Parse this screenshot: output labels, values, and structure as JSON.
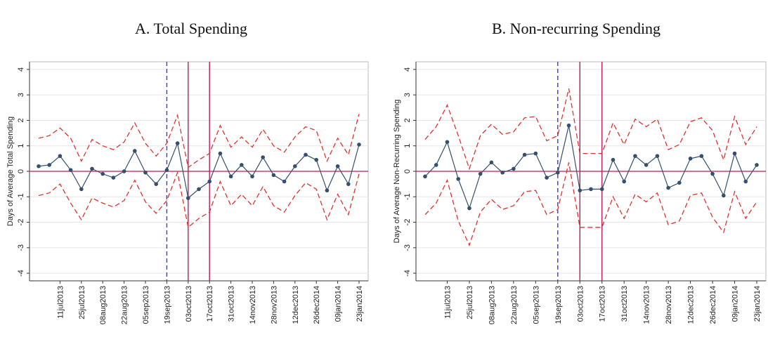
{
  "chart_data": [
    {
      "type": "line",
      "title": "A. Total Spending",
      "y_label": "Days of Average Total Spending",
      "categories": [
        null,
        null,
        "11jul2013",
        null,
        "25jul2013",
        null,
        "08aug2013",
        null,
        "22aug2013",
        null,
        "05sep2013",
        null,
        "19sep2013",
        null,
        "03oct2013",
        null,
        "17oct2013",
        null,
        "31oct2013",
        null,
        "14nov2013",
        null,
        "28nov2013",
        null,
        "12dec2013",
        null,
        "26dec2014",
        null,
        "09jan2014",
        null,
        "23jan2014"
      ],
      "series": [
        {
          "color": "#34506e",
          "markers": true,
          "dash": false,
          "values": [
            0.2,
            0.25,
            0.6,
            0.05,
            -0.7,
            0.1,
            -0.1,
            -0.25,
            0.0,
            0.8,
            -0.05,
            -0.5,
            0.05,
            1.1,
            -1.05,
            -0.7,
            -0.4,
            0.7,
            -0.2,
            0.25,
            -0.2,
            0.55,
            -0.15,
            -0.4,
            0.2,
            0.65,
            0.45,
            -0.75,
            0.2,
            -0.5,
            1.05
          ]
        },
        {
          "color": "#e0332e",
          "markers": false,
          "dash": true,
          "values": [
            1.3,
            1.4,
            1.7,
            1.3,
            0.4,
            1.25,
            1.0,
            0.85,
            1.15,
            1.9,
            1.1,
            0.6,
            1.1,
            2.2,
            0.15,
            0.45,
            0.7,
            1.8,
            0.95,
            1.35,
            0.95,
            1.65,
            1.0,
            0.75,
            1.35,
            1.75,
            1.6,
            0.4,
            1.3,
            0.65,
            2.25
          ]
        },
        {
          "color": "#e0332e",
          "markers": false,
          "dash": true,
          "values": [
            -0.95,
            -0.85,
            -0.5,
            -1.25,
            -1.9,
            -1.05,
            -1.25,
            -1.4,
            -1.15,
            -0.35,
            -1.2,
            -1.65,
            -1.15,
            -0.05,
            -2.2,
            -1.85,
            -1.6,
            -0.4,
            -1.35,
            -0.9,
            -1.35,
            -0.6,
            -1.35,
            -1.6,
            -0.95,
            -0.45,
            -0.7,
            -1.9,
            -0.9,
            -1.7,
            -0.1
          ]
        }
      ],
      "ylim": [
        -4.3,
        4.3
      ],
      "yticks": [
        -4,
        -3,
        -2,
        -1,
        0,
        1,
        2,
        3,
        4
      ],
      "grid": true,
      "hline": {
        "y": 0,
        "color": "#c2185b"
      },
      "vlines": [
        {
          "x": 12,
          "color": "#3b3bd9",
          "dash": true
        },
        {
          "x": 14,
          "color": "#c2185b",
          "dash": false
        },
        {
          "x": 16,
          "color": "#c2185b",
          "dash": false
        }
      ]
    },
    {
      "type": "line",
      "title": "B. Non-recurring Spending",
      "y_label": "Days of Average Non-Recurring Spending",
      "categories": [
        null,
        null,
        "11jul2013",
        null,
        "25jul2013",
        null,
        "08aug2013",
        null,
        "22aug2013",
        null,
        "05sep2013",
        null,
        "19sep2013",
        null,
        "03oct2013",
        null,
        "17oct2013",
        null,
        "31oct2013",
        null,
        "14nov2013",
        null,
        "28nov2013",
        null,
        "12dec2013",
        null,
        "26dec2014",
        null,
        "09jan2014",
        null,
        "23jan2014"
      ],
      "series": [
        {
          "color": "#34506e",
          "markers": true,
          "dash": false,
          "values": [
            -0.2,
            0.25,
            1.15,
            -0.3,
            -1.45,
            -0.1,
            0.35,
            -0.05,
            0.1,
            0.65,
            0.7,
            -0.25,
            -0.05,
            1.8,
            -0.75,
            -0.7,
            -0.7,
            0.45,
            -0.4,
            0.6,
            0.25,
            0.6,
            -0.65,
            -0.45,
            0.5,
            0.6,
            -0.1,
            -0.95,
            0.7,
            -0.4,
            0.25
          ]
        },
        {
          "color": "#e0332e",
          "markers": false,
          "dash": true,
          "values": [
            1.25,
            1.75,
            2.6,
            1.4,
            0.1,
            1.4,
            1.85,
            1.45,
            1.55,
            2.1,
            2.15,
            1.2,
            1.4,
            3.25,
            0.7,
            0.7,
            0.7,
            1.9,
            1.05,
            2.05,
            1.75,
            2.05,
            0.85,
            1.05,
            1.95,
            2.1,
            1.6,
            0.45,
            2.15,
            1.05,
            1.75
          ]
        },
        {
          "color": "#e0332e",
          "markers": false,
          "dash": true,
          "values": [
            -1.7,
            -1.25,
            -0.35,
            -1.95,
            -2.9,
            -1.6,
            -1.1,
            -1.5,
            -1.35,
            -0.8,
            -0.75,
            -1.7,
            -1.5,
            0.35,
            -2.2,
            -2.2,
            -2.2,
            -1.0,
            -1.85,
            -0.9,
            -1.2,
            -0.85,
            -2.1,
            -1.95,
            -0.95,
            -0.85,
            -1.8,
            -2.4,
            -0.8,
            -1.85,
            -1.2
          ]
        }
      ],
      "ylim": [
        -4.3,
        4.3
      ],
      "yticks": [
        -4,
        -3,
        -2,
        -1,
        0,
        1,
        2,
        3,
        4
      ],
      "grid": true,
      "hline": {
        "y": 0,
        "color": "#c2185b"
      },
      "vlines": [
        {
          "x": 12,
          "color": "#3b3bd9",
          "dash": true
        },
        {
          "x": 14,
          "color": "#c2185b",
          "dash": false
        },
        {
          "x": 16,
          "color": "#c2185b",
          "dash": false
        }
      ]
    }
  ]
}
